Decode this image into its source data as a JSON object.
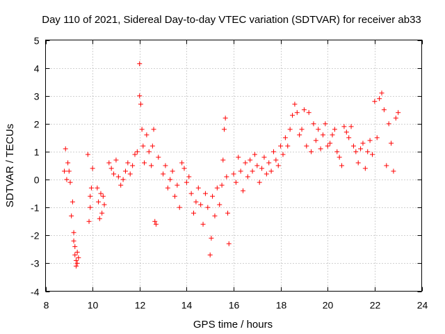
{
  "chart_data": {
    "type": "scatter",
    "title": "Day 110 of 2021, Sidereal Day-to-day VTEC variation (SDTVAR) for receiver ab33",
    "xlabel": "GPS time / hours",
    "ylabel": "SDTVAR / TECUs",
    "xlim": [
      8,
      24
    ],
    "ylim": [
      -4,
      5
    ],
    "xticks": [
      "8",
      "10",
      "12",
      "14",
      "16",
      "18",
      "20",
      "22",
      "24"
    ],
    "yticks": [
      "-4",
      "-3",
      "-2",
      "-1",
      "0",
      "1",
      "2",
      "3",
      "4",
      "5"
    ],
    "grid": true,
    "marker": "+",
    "color": "#ff0000",
    "series": [
      {
        "name": "SDTVAR",
        "x": [
          8.8,
          8.85,
          8.9,
          8.95,
          9.0,
          9.05,
          9.1,
          9.15,
          9.2,
          9.2,
          9.25,
          9.25,
          9.3,
          9.3,
          9.35,
          9.35,
          9.4,
          9.8,
          9.85,
          9.9,
          9.9,
          9.95,
          10.0,
          10.2,
          10.25,
          10.3,
          10.35,
          10.4,
          10.45,
          10.5,
          10.7,
          10.8,
          10.9,
          11.0,
          11.1,
          11.2,
          11.3,
          11.4,
          11.5,
          11.6,
          11.7,
          11.8,
          11.9,
          12.0,
          12.0,
          12.05,
          12.1,
          12.15,
          12.2,
          12.3,
          12.4,
          12.5,
          12.55,
          12.6,
          12.65,
          12.7,
          12.8,
          13.0,
          13.1,
          13.2,
          13.3,
          13.4,
          13.5,
          13.6,
          13.7,
          13.8,
          13.9,
          14.0,
          14.1,
          14.2,
          14.3,
          14.4,
          14.5,
          14.6,
          14.7,
          14.8,
          14.9,
          15.0,
          15.05,
          15.1,
          15.2,
          15.3,
          15.4,
          15.5,
          15.55,
          15.6,
          15.65,
          15.7,
          15.75,
          15.8,
          16.0,
          16.1,
          16.2,
          16.3,
          16.4,
          16.5,
          16.6,
          16.7,
          16.8,
          16.9,
          17.0,
          17.1,
          17.2,
          17.3,
          17.4,
          17.5,
          17.6,
          17.7,
          17.8,
          17.9,
          18.0,
          18.1,
          18.2,
          18.3,
          18.4,
          18.5,
          18.6,
          18.7,
          18.8,
          18.9,
          19.0,
          19.1,
          19.2,
          19.3,
          19.4,
          19.5,
          19.6,
          19.7,
          19.8,
          19.9,
          20.0,
          20.1,
          20.2,
          20.3,
          20.4,
          20.5,
          20.6,
          20.7,
          20.8,
          20.9,
          21.0,
          21.1,
          21.2,
          21.3,
          21.4,
          21.5,
          21.6,
          21.7,
          21.8,
          21.9,
          22.0,
          22.1,
          22.2,
          22.3,
          22.4,
          22.5,
          22.6,
          22.7,
          22.8,
          22.9,
          23.0
        ],
        "y": [
          0.3,
          1.1,
          0.0,
          0.6,
          0.3,
          -0.1,
          -1.3,
          -0.8,
          -2.2,
          -1.9,
          -2.7,
          -2.4,
          -3.1,
          -2.9,
          -2.6,
          -3.0,
          -2.8,
          0.9,
          -1.5,
          -0.6,
          -1.0,
          -0.3,
          0.4,
          -0.3,
          -0.8,
          -1.4,
          -0.5,
          -1.2,
          -0.6,
          -0.9,
          0.6,
          0.4,
          0.2,
          0.7,
          0.1,
          -0.2,
          0.0,
          0.3,
          0.6,
          0.2,
          0.5,
          0.9,
          1.0,
          4.15,
          3.0,
          2.7,
          1.8,
          1.2,
          0.6,
          1.6,
          1.0,
          0.5,
          1.2,
          1.8,
          -1.5,
          -1.6,
          0.8,
          0.2,
          0.5,
          -0.3,
          0.0,
          0.3,
          -0.6,
          -0.2,
          -1.0,
          0.6,
          0.4,
          -0.1,
          0.1,
          -0.5,
          -1.2,
          -0.8,
          -0.3,
          -0.9,
          -1.6,
          -0.5,
          -1.0,
          -2.7,
          -2.1,
          -0.6,
          -1.3,
          -0.3,
          -0.9,
          -0.2,
          0.7,
          1.8,
          2.2,
          0.1,
          -1.2,
          -2.3,
          0.2,
          -0.1,
          0.8,
          0.3,
          -0.4,
          0.6,
          0.1,
          0.7,
          0.3,
          0.9,
          0.5,
          -0.1,
          0.4,
          0.8,
          0.2,
          0.6,
          0.3,
          1.0,
          0.7,
          0.5,
          1.2,
          0.9,
          1.5,
          1.2,
          1.8,
          2.3,
          2.7,
          2.4,
          1.6,
          1.8,
          2.5,
          1.2,
          2.4,
          1.0,
          2.0,
          1.4,
          1.8,
          1.1,
          1.6,
          2.0,
          1.2,
          1.3,
          1.6,
          1.8,
          1.0,
          0.8,
          0.5,
          1.9,
          1.7,
          1.5,
          1.9,
          1.2,
          1.0,
          0.6,
          1.1,
          1.3,
          0.4,
          1.0,
          1.4,
          0.9,
          2.8,
          1.5,
          2.9,
          3.1,
          2.5,
          0.5,
          2.0,
          1.3,
          0.3,
          2.2,
          2.4
        ]
      }
    ]
  }
}
